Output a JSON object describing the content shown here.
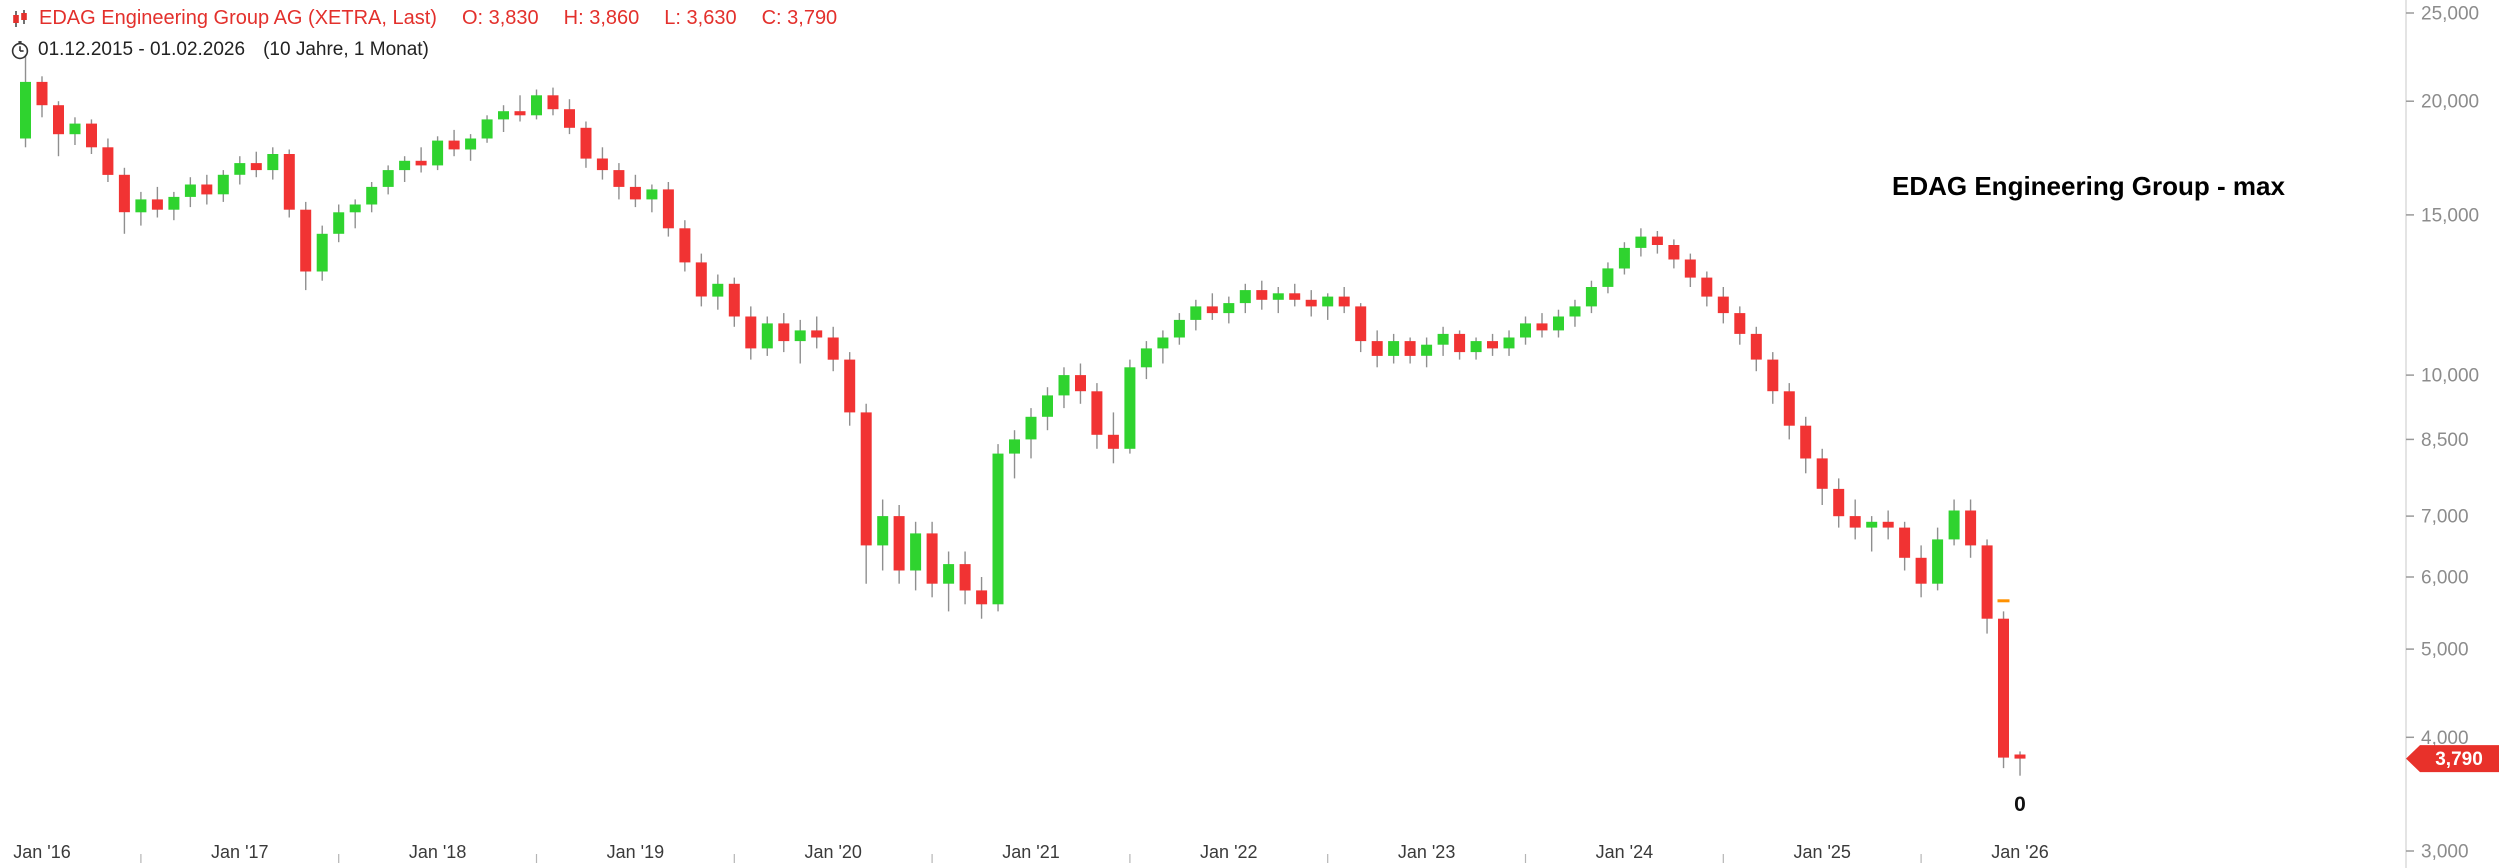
{
  "header": {
    "instrument": "EDAG Engineering Group AG (XETRA, Last)",
    "open": "O: 3,830",
    "high": "H: 3,860",
    "low": "L: 3,630",
    "close": "C: 3,790"
  },
  "period": {
    "range": "01.12.2015 - 01.02.2026",
    "duration": "(10 Jahre, 1 Monat)"
  },
  "watermark": "EDAG Engineering Group - max",
  "price_tag": {
    "value": "3,790",
    "price": 3790,
    "color": "#e8312a",
    "text_color": "#ffffff"
  },
  "annotations": {
    "zero_label": "0",
    "event_marker": {
      "candle_index": 120,
      "price": 5650,
      "color": "#ff9100"
    }
  },
  "colors": {
    "up": "#2fd32f",
    "down": "#f13333",
    "wick": "#8f8f8f",
    "axis_line": "#c9c9c9",
    "axis_text": "#8c8c8c",
    "x_label": "#3a3a3a",
    "header_red": "#e3302c",
    "header_dark": "#222222"
  },
  "chart_data": {
    "type": "candlestick",
    "scale": "log",
    "title": "EDAG Engineering Group - max",
    "instrument": "EDAG Engineering Group AG (XETRA)",
    "period": "monthly, Dec 2015 - Jan 2026",
    "last_price": 3790,
    "y_axis": {
      "min": 3000,
      "max": 25000,
      "ticks": [
        25000,
        20000,
        15000,
        10000,
        8500,
        7000,
        6000,
        5000,
        4000,
        3000
      ],
      "tick_labels": [
        "25,000",
        "20,000",
        "15,000",
        "10,000",
        "8,500",
        "7,000",
        "6,000",
        "5,000",
        "4,000",
        "3,000"
      ]
    },
    "x_axis": {
      "tick_labels": [
        "Jan '16",
        "Jan '17",
        "Jan '18",
        "Jan '19",
        "Jan '20",
        "Jan '21",
        "Jan '22",
        "Jan '23",
        "Jan '24",
        "Jan '25",
        "Jan '26"
      ]
    },
    "candles": [
      [
        "2015-12",
        18200,
        22500,
        17800,
        21000
      ],
      [
        "2016-01",
        21000,
        21300,
        19200,
        19800
      ],
      [
        "2016-02",
        19800,
        20000,
        17400,
        18400
      ],
      [
        "2016-03",
        18400,
        19200,
        17900,
        18900
      ],
      [
        "2016-04",
        18900,
        19100,
        17500,
        17800
      ],
      [
        "2016-05",
        17800,
        18200,
        16300,
        16600
      ],
      [
        "2016-06",
        16600,
        16900,
        14300,
        15100
      ],
      [
        "2016-07",
        15100,
        15900,
        14600,
        15600
      ],
      [
        "2016-08",
        15600,
        16100,
        14900,
        15200
      ],
      [
        "2016-09",
        15200,
        15900,
        14800,
        15700
      ],
      [
        "2016-10",
        15700,
        16500,
        15300,
        16200
      ],
      [
        "2016-11",
        16200,
        16600,
        15400,
        15800
      ],
      [
        "2016-12",
        15800,
        16800,
        15500,
        16600
      ],
      [
        "2017-01",
        16600,
        17400,
        16200,
        17100
      ],
      [
        "2017-02",
        17100,
        17600,
        16500,
        16800
      ],
      [
        "2017-03",
        16800,
        17800,
        16400,
        17500
      ],
      [
        "2017-04",
        17500,
        17700,
        14900,
        15200
      ],
      [
        "2017-05",
        15200,
        15500,
        12400,
        13000
      ],
      [
        "2017-06",
        13000,
        14600,
        12700,
        14300
      ],
      [
        "2017-07",
        14300,
        15400,
        14000,
        15100
      ],
      [
        "2017-08",
        15100,
        15600,
        14500,
        15400
      ],
      [
        "2017-09",
        15400,
        16300,
        15100,
        16100
      ],
      [
        "2017-10",
        16100,
        17000,
        15800,
        16800
      ],
      [
        "2017-11",
        16800,
        17400,
        16300,
        17200
      ],
      [
        "2017-12",
        17200,
        17800,
        16700,
        17000
      ],
      [
        "2018-01",
        17000,
        18300,
        16800,
        18100
      ],
      [
        "2018-02",
        18100,
        18600,
        17400,
        17700
      ],
      [
        "2018-03",
        17700,
        18400,
        17200,
        18200
      ],
      [
        "2018-04",
        18200,
        19300,
        18000,
        19100
      ],
      [
        "2018-05",
        19100,
        19800,
        18500,
        19500
      ],
      [
        "2018-06",
        19500,
        20300,
        19000,
        19300
      ],
      [
        "2018-07",
        19300,
        20600,
        19100,
        20300
      ],
      [
        "2018-08",
        20300,
        20700,
        19300,
        19600
      ],
      [
        "2018-09",
        19600,
        20100,
        18400,
        18700
      ],
      [
        "2018-10",
        18700,
        19000,
        16900,
        17300
      ],
      [
        "2018-11",
        17300,
        17800,
        16400,
        16800
      ],
      [
        "2018-12",
        16800,
        17100,
        15600,
        16100
      ],
      [
        "2019-01",
        16100,
        16600,
        15300,
        15600
      ],
      [
        "2019-02",
        15600,
        16200,
        15100,
        16000
      ],
      [
        "2019-03",
        16000,
        16300,
        14200,
        14500
      ],
      [
        "2019-04",
        14500,
        14800,
        13000,
        13300
      ],
      [
        "2019-05",
        13300,
        13600,
        11900,
        12200
      ],
      [
        "2019-06",
        12200,
        12900,
        11800,
        12600
      ],
      [
        "2019-07",
        12600,
        12800,
        11300,
        11600
      ],
      [
        "2019-08",
        11600,
        11900,
        10400,
        10700
      ],
      [
        "2019-09",
        10700,
        11600,
        10500,
        11400
      ],
      [
        "2019-10",
        11400,
        11700,
        10600,
        10900
      ],
      [
        "2019-11",
        10900,
        11500,
        10300,
        11200
      ],
      [
        "2019-12",
        11200,
        11600,
        10700,
        11000
      ],
      [
        "2020-01",
        11000,
        11300,
        10100,
        10400
      ],
      [
        "2020-02",
        10400,
        10600,
        8800,
        9100
      ],
      [
        "2020-03",
        9100,
        9300,
        5900,
        6500
      ],
      [
        "2020-04",
        6500,
        7300,
        6100,
        7000
      ],
      [
        "2020-05",
        7000,
        7200,
        5900,
        6100
      ],
      [
        "2020-06",
        6100,
        6900,
        5800,
        6700
      ],
      [
        "2020-07",
        6700,
        6900,
        5700,
        5900
      ],
      [
        "2020-08",
        5900,
        6400,
        5500,
        6200
      ],
      [
        "2020-09",
        6200,
        6400,
        5600,
        5800
      ],
      [
        "2020-10",
        5800,
        6000,
        5400,
        5600
      ],
      [
        "2020-11",
        5600,
        8400,
        5500,
        8200
      ],
      [
        "2020-12",
        8200,
        8700,
        7700,
        8500
      ],
      [
        "2021-01",
        8500,
        9200,
        8100,
        9000
      ],
      [
        "2021-02",
        9000,
        9700,
        8700,
        9500
      ],
      [
        "2021-03",
        9500,
        10200,
        9200,
        10000
      ],
      [
        "2021-04",
        10000,
        10300,
        9300,
        9600
      ],
      [
        "2021-05",
        9600,
        9800,
        8300,
        8600
      ],
      [
        "2021-06",
        8600,
        9100,
        8000,
        8300
      ],
      [
        "2021-07",
        8300,
        10400,
        8200,
        10200
      ],
      [
        "2021-08",
        10200,
        10900,
        9900,
        10700
      ],
      [
        "2021-09",
        10700,
        11200,
        10300,
        11000
      ],
      [
        "2021-10",
        11000,
        11700,
        10800,
        11500
      ],
      [
        "2021-11",
        11500,
        12100,
        11200,
        11900
      ],
      [
        "2021-12",
        11900,
        12300,
        11500,
        11700
      ],
      [
        "2022-01",
        11700,
        12200,
        11400,
        12000
      ],
      [
        "2022-02",
        12000,
        12600,
        11700,
        12400
      ],
      [
        "2022-03",
        12400,
        12700,
        11800,
        12100
      ],
      [
        "2022-04",
        12100,
        12500,
        11700,
        12300
      ],
      [
        "2022-05",
        12300,
        12600,
        11900,
        12100
      ],
      [
        "2022-06",
        12100,
        12400,
        11600,
        11900
      ],
      [
        "2022-07",
        11900,
        12300,
        11500,
        12200
      ],
      [
        "2022-08",
        12200,
        12500,
        11700,
        11900
      ],
      [
        "2022-09",
        11900,
        12000,
        10600,
        10900
      ],
      [
        "2022-10",
        10900,
        11200,
        10200,
        10500
      ],
      [
        "2022-11",
        10500,
        11100,
        10300,
        10900
      ],
      [
        "2022-12",
        10900,
        11000,
        10300,
        10500
      ],
      [
        "2023-01",
        10500,
        11000,
        10200,
        10800
      ],
      [
        "2023-02",
        10800,
        11300,
        10500,
        11100
      ],
      [
        "2023-03",
        11100,
        11200,
        10400,
        10600
      ],
      [
        "2023-04",
        10600,
        11000,
        10400,
        10900
      ],
      [
        "2023-05",
        10900,
        11100,
        10500,
        10700
      ],
      [
        "2023-06",
        10700,
        11200,
        10500,
        11000
      ],
      [
        "2023-07",
        11000,
        11600,
        10800,
        11400
      ],
      [
        "2023-08",
        11400,
        11700,
        11000,
        11200
      ],
      [
        "2023-09",
        11200,
        11800,
        11000,
        11600
      ],
      [
        "2023-10",
        11600,
        12100,
        11300,
        11900
      ],
      [
        "2023-11",
        11900,
        12700,
        11700,
        12500
      ],
      [
        "2023-12",
        12500,
        13300,
        12300,
        13100
      ],
      [
        "2024-01",
        13100,
        14000,
        12900,
        13800
      ],
      [
        "2024-02",
        13800,
        14500,
        13500,
        14200
      ],
      [
        "2024-03",
        14200,
        14400,
        13600,
        13900
      ],
      [
        "2024-04",
        13900,
        14100,
        13100,
        13400
      ],
      [
        "2024-05",
        13400,
        13600,
        12500,
        12800
      ],
      [
        "2024-06",
        12800,
        13000,
        11900,
        12200
      ],
      [
        "2024-07",
        12200,
        12500,
        11400,
        11700
      ],
      [
        "2024-08",
        11700,
        11900,
        10800,
        11100
      ],
      [
        "2024-09",
        11100,
        11300,
        10100,
        10400
      ],
      [
        "2024-10",
        10400,
        10600,
        9300,
        9600
      ],
      [
        "2024-11",
        9600,
        9800,
        8500,
        8800
      ],
      [
        "2024-12",
        8800,
        9000,
        7800,
        8100
      ],
      [
        "2025-01",
        8100,
        8300,
        7200,
        7500
      ],
      [
        "2025-02",
        7500,
        7700,
        6800,
        7000
      ],
      [
        "2025-03",
        7000,
        7300,
        6600,
        6800
      ],
      [
        "2025-04",
        6800,
        7000,
        6400,
        6900
      ],
      [
        "2025-05",
        6900,
        7100,
        6600,
        6800
      ],
      [
        "2025-06",
        6800,
        6900,
        6100,
        6300
      ],
      [
        "2025-07",
        6300,
        6500,
        5700,
        5900
      ],
      [
        "2025-08",
        5900,
        6800,
        5800,
        6600
      ],
      [
        "2025-09",
        6600,
        7300,
        6500,
        7100
      ],
      [
        "2025-10",
        7100,
        7300,
        6300,
        6500
      ],
      [
        "2025-11",
        6500,
        6600,
        5200,
        5400
      ],
      [
        "2025-12",
        5400,
        5500,
        3700,
        3800
      ],
      [
        "2026-01",
        3830,
        3860,
        3630,
        3790
      ]
    ]
  }
}
